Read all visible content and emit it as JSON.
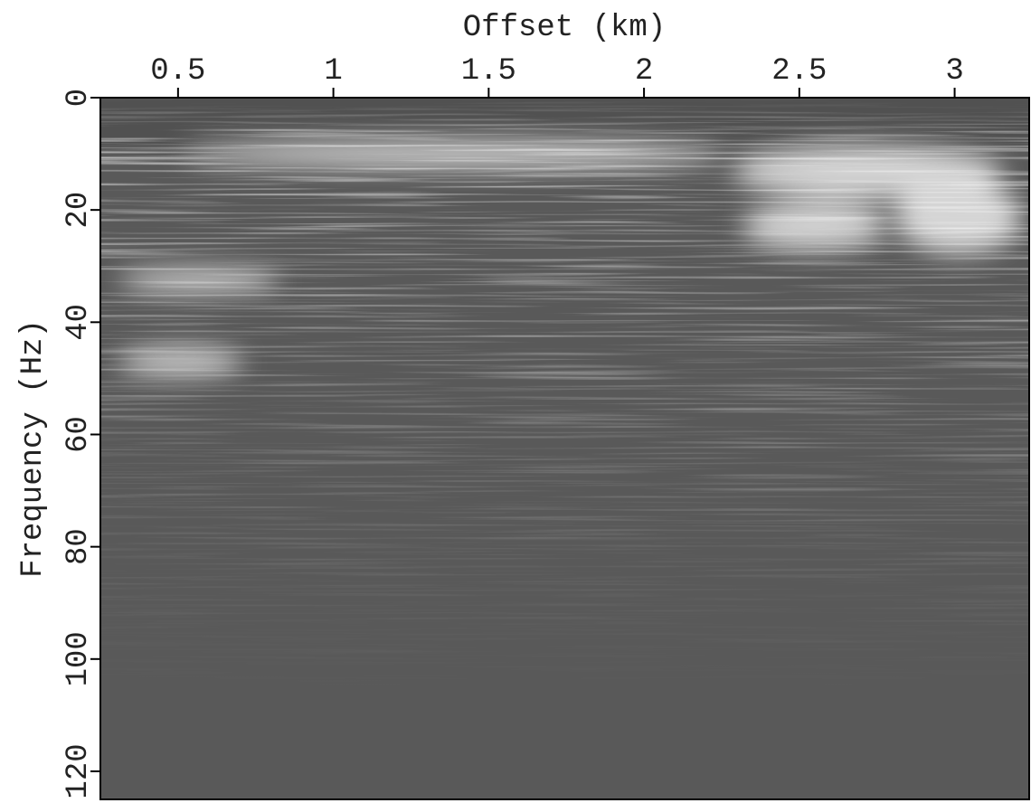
{
  "chart_data": {
    "type": "image",
    "xlabel": "Offset (km)",
    "ylabel": "Frequency (Hz)",
    "xlim": [
      0.25,
      3.24
    ],
    "ylim": [
      0,
      125
    ],
    "xticks": [
      0.5,
      1,
      1.5,
      2,
      2.5,
      3
    ],
    "yticks": [
      0,
      20,
      40,
      60,
      80,
      100,
      120
    ],
    "y_inverted": true,
    "x_axis_position": "top"
  }
}
